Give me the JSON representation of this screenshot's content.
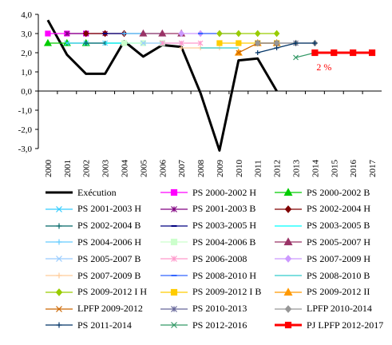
{
  "chart_data": {
    "type": "line",
    "x": [
      "2000",
      "2001",
      "2002",
      "2003",
      "2004",
      "2005",
      "2006",
      "2007",
      "2008",
      "2009",
      "2010",
      "2011",
      "2012",
      "2013",
      "2014",
      "2015",
      "2016",
      "2017"
    ],
    "ylim": [
      -3.0,
      4.0
    ],
    "yticks": [
      "4,0",
      "3,0",
      "2,0",
      "1,0",
      "0,0",
      "-1,0",
      "-2,0",
      "-3,0"
    ],
    "annotation": "2 %",
    "grid": false,
    "legend_position": "bottom",
    "series": [
      {
        "name": "Exécution",
        "color": "#000000",
        "marker": "none",
        "width": 3,
        "values": [
          3.7,
          1.9,
          0.9,
          0.9,
          2.6,
          1.8,
          2.4,
          2.3,
          -0.1,
          -3.1,
          1.6,
          1.7,
          0.0,
          null,
          null,
          null,
          null,
          null
        ]
      },
      {
        "name": "PS 2000-2002 H",
        "color": "#ff00ff",
        "marker": "square",
        "values": [
          3.0,
          3.0,
          3.0,
          null,
          null,
          null,
          null,
          null,
          null,
          null,
          null,
          null,
          null,
          null,
          null,
          null,
          null,
          null
        ]
      },
      {
        "name": "PS 2000-2002 B",
        "color": "#00cc00",
        "marker": "triangle",
        "values": [
          2.5,
          2.5,
          2.5,
          null,
          null,
          null,
          null,
          null,
          null,
          null,
          null,
          null,
          null,
          null,
          null,
          null,
          null,
          null
        ]
      },
      {
        "name": "PS 2001-2003 H",
        "color": "#33ccff",
        "marker": "x",
        "values": [
          null,
          2.5,
          2.5,
          2.5,
          null,
          null,
          null,
          null,
          null,
          null,
          null,
          null,
          null,
          null,
          null,
          null,
          null,
          null
        ]
      },
      {
        "name": "PS 2001-2003 B",
        "color": "#800080",
        "marker": "star",
        "values": [
          null,
          3.0,
          3.0,
          3.0,
          null,
          null,
          null,
          null,
          null,
          null,
          null,
          null,
          null,
          null,
          null,
          null,
          null,
          null
        ]
      },
      {
        "name": "PS 2002-2004 H",
        "color": "#800000",
        "marker": "diamond",
        "values": [
          null,
          null,
          3.0,
          3.0,
          3.0,
          null,
          null,
          null,
          null,
          null,
          null,
          null,
          null,
          null,
          null,
          null,
          null,
          null
        ]
      },
      {
        "name": "PS 2002-2004 B",
        "color": "#006666",
        "marker": "plus",
        "values": [
          null,
          null,
          2.5,
          2.5,
          2.5,
          null,
          null,
          null,
          null,
          null,
          null,
          null,
          null,
          null,
          null,
          null,
          null,
          null
        ]
      },
      {
        "name": "PS 2003-2005 H",
        "color": "#000080",
        "marker": "dash",
        "values": [
          null,
          null,
          null,
          3.0,
          3.0,
          3.0,
          null,
          null,
          null,
          null,
          null,
          null,
          null,
          null,
          null,
          null,
          null,
          null
        ]
      },
      {
        "name": "PS 2003-2005 B",
        "color": "#00ffff",
        "marker": "none",
        "values": [
          null,
          null,
          null,
          2.5,
          2.5,
          2.5,
          null,
          null,
          null,
          null,
          null,
          null,
          null,
          null,
          null,
          null,
          null,
          null
        ]
      },
      {
        "name": "PS 2004-2006 H",
        "color": "#66ccff",
        "marker": "plus",
        "values": [
          null,
          null,
          null,
          null,
          3.0,
          3.0,
          3.0,
          null,
          null,
          null,
          null,
          null,
          null,
          null,
          null,
          null,
          null,
          null
        ]
      },
      {
        "name": "PS 2004-2006 B",
        "color": "#ccffcc",
        "marker": "square",
        "values": [
          null,
          null,
          null,
          null,
          2.5,
          2.5,
          2.5,
          null,
          null,
          null,
          null,
          null,
          null,
          null,
          null,
          null,
          null,
          null
        ]
      },
      {
        "name": "PS 2005-2007 H",
        "color": "#993366",
        "marker": "triangle",
        "values": [
          null,
          null,
          null,
          null,
          null,
          3.0,
          3.0,
          3.0,
          null,
          null,
          null,
          null,
          null,
          null,
          null,
          null,
          null,
          null
        ]
      },
      {
        "name": "PS 2005-2007 B",
        "color": "#99ccff",
        "marker": "x",
        "values": [
          null,
          null,
          null,
          null,
          null,
          2.5,
          2.5,
          2.5,
          null,
          null,
          null,
          null,
          null,
          null,
          null,
          null,
          null,
          null
        ]
      },
      {
        "name": "PS 2006-2008",
        "color": "#ff99cc",
        "marker": "star",
        "values": [
          null,
          null,
          null,
          null,
          null,
          null,
          2.5,
          2.5,
          2.5,
          null,
          null,
          null,
          null,
          null,
          null,
          null,
          null,
          null
        ]
      },
      {
        "name": "PS 2007-2009 H",
        "color": "#cc99ff",
        "marker": "diamond",
        "values": [
          null,
          null,
          null,
          null,
          null,
          null,
          null,
          3.0,
          3.0,
          3.0,
          null,
          null,
          null,
          null,
          null,
          null,
          null,
          null
        ]
      },
      {
        "name": "PS 2007-2009 B",
        "color": "#ffcc99",
        "marker": "plus",
        "values": [
          null,
          null,
          null,
          null,
          null,
          null,
          null,
          2.25,
          2.25,
          2.25,
          null,
          null,
          null,
          null,
          null,
          null,
          null,
          null
        ]
      },
      {
        "name": "PS 2008-2010 H",
        "color": "#3366ff",
        "marker": "dash",
        "values": [
          null,
          null,
          null,
          null,
          null,
          null,
          null,
          null,
          3.0,
          3.0,
          3.0,
          null,
          null,
          null,
          null,
          null,
          null,
          null
        ]
      },
      {
        "name": "PS 2008-2010 B",
        "color": "#33cccc",
        "marker": "none",
        "values": [
          null,
          null,
          null,
          null,
          null,
          null,
          null,
          null,
          2.25,
          2.25,
          2.25,
          null,
          null,
          null,
          null,
          null,
          null,
          null
        ]
      },
      {
        "name": "PS 2009-2012 I H",
        "color": "#99cc00",
        "marker": "diamond",
        "values": [
          null,
          null,
          null,
          null,
          null,
          null,
          null,
          null,
          null,
          3.0,
          3.0,
          3.0,
          3.0,
          null,
          null,
          null,
          null,
          null
        ]
      },
      {
        "name": "PS 2009-2012 I B",
        "color": "#ffcc00",
        "marker": "square",
        "values": [
          null,
          null,
          null,
          null,
          null,
          null,
          null,
          null,
          null,
          2.5,
          2.5,
          2.5,
          2.5,
          null,
          null,
          null,
          null,
          null
        ]
      },
      {
        "name": "PS 2009-2012 II",
        "color": "#ff9900",
        "marker": "triangle",
        "values": [
          null,
          null,
          null,
          null,
          null,
          null,
          null,
          null,
          null,
          null,
          2.0,
          2.5,
          2.5,
          null,
          null,
          null,
          null,
          null
        ]
      },
      {
        "name": "LPFP 2009-2012",
        "color": "#cc6600",
        "marker": "x",
        "values": [
          null,
          null,
          null,
          null,
          null,
          null,
          null,
          null,
          null,
          null,
          2.0,
          2.5,
          2.5,
          null,
          null,
          null,
          null,
          null
        ]
      },
      {
        "name": "PS 2010-2013",
        "color": "#666699",
        "marker": "star",
        "values": [
          null,
          null,
          null,
          null,
          null,
          null,
          null,
          null,
          null,
          null,
          null,
          2.5,
          2.5,
          2.5,
          null,
          null,
          null,
          null
        ]
      },
      {
        "name": "LPFP 2010-2014",
        "color": "#969696",
        "marker": "diamond",
        "values": [
          null,
          null,
          null,
          null,
          null,
          null,
          null,
          null,
          null,
          null,
          null,
          2.5,
          2.5,
          2.5,
          2.5,
          null,
          null,
          null
        ]
      },
      {
        "name": "PS 2011-2014",
        "color": "#003366",
        "marker": "plus",
        "values": [
          null,
          null,
          null,
          null,
          null,
          null,
          null,
          null,
          null,
          null,
          null,
          2.0,
          2.25,
          2.5,
          2.5,
          null,
          null,
          null
        ]
      },
      {
        "name": "PS 2012-2016",
        "color": "#339966",
        "marker": "x",
        "values": [
          null,
          null,
          null,
          null,
          null,
          null,
          null,
          null,
          null,
          null,
          null,
          null,
          null,
          1.75,
          2.0,
          2.0,
          2.0,
          null
        ]
      },
      {
        "name": "PJ LPFP 2012-2017",
        "color": "#ff0000",
        "marker": "square",
        "width": 3,
        "values": [
          null,
          null,
          null,
          null,
          null,
          null,
          null,
          null,
          null,
          null,
          null,
          null,
          null,
          null,
          2.0,
          2.0,
          2.0,
          2.0
        ]
      }
    ]
  }
}
